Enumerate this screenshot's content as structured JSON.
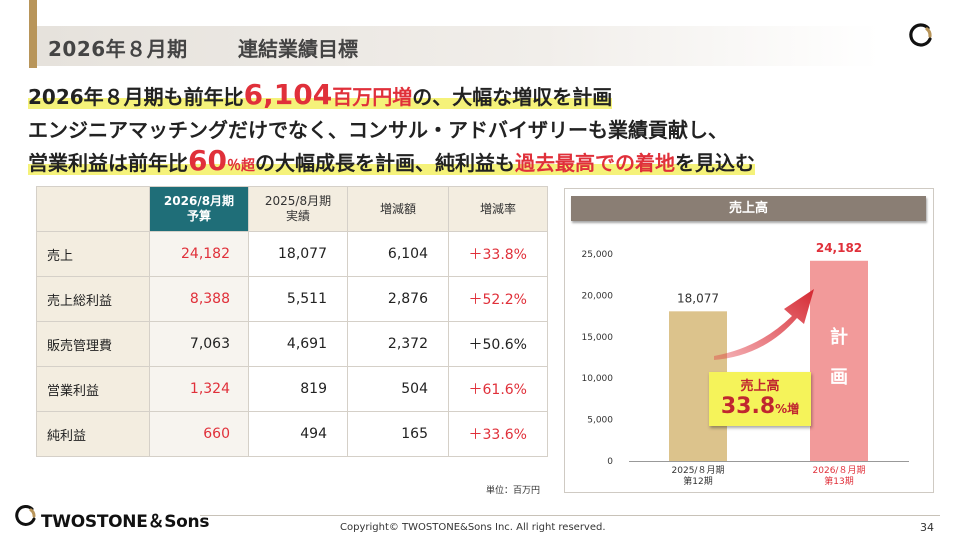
{
  "header": {
    "title": "2026年８月期",
    "subtitle": "連結業績目標"
  },
  "headline": {
    "line1_a": "2026年８月期も前年比",
    "line1_big": "6,104",
    "line1_unit": "百万円増",
    "line1_b": "の、大幅な増収を計画",
    "line2": "エンジニアマッチングだけでなく、コンサル・アドバイザリーも業績貢献し、",
    "line3_a": "営業利益は前年比",
    "line3_big": "60",
    "line3_pct": "％超",
    "line3_b": "の大幅成長を計画、純利益も",
    "line3_red": "過去最高での着地",
    "line3_c": "を見込む"
  },
  "table": {
    "headers": {
      "plan_l1": "2026/8月期",
      "plan_l2": "予算",
      "prev_l1": "2025/8月期",
      "prev_l2": "実績",
      "diff": "増減額",
      "rate": "増減率"
    },
    "rows": [
      {
        "label": "売上",
        "plan": "24,182",
        "prev": "18,077",
        "diff": "6,104",
        "rate": "＋33.8%"
      },
      {
        "label": "売上総利益",
        "plan": "8,388",
        "prev": "5,511",
        "diff": "2,876",
        "rate": "＋52.2%"
      },
      {
        "label": "販売管理費",
        "plan": "7,063",
        "prev": "4,691",
        "diff": "2,372",
        "rate": "＋50.6%"
      },
      {
        "label": "営業利益",
        "plan": "1,324",
        "prev": "819",
        "diff": "504",
        "rate": "＋61.6%"
      },
      {
        "label": "純利益",
        "plan": "660",
        "prev": "494",
        "diff": "165",
        "rate": "＋33.6%"
      }
    ],
    "unit_note": "単位：百万円"
  },
  "callout": {
    "label": "売上高",
    "value": "33.8",
    "suffix": "%増"
  },
  "plan_vertical": [
    "計",
    "画"
  ],
  "chart_data": {
    "type": "bar",
    "title": "売上高",
    "categories": [
      "2025/８月期 第12期",
      "2026/８月期 第13期"
    ],
    "category_lines": [
      [
        "2025/８月期",
        "第12期"
      ],
      [
        "2026/８月期",
        "第13期"
      ]
    ],
    "values": [
      18077,
      24182
    ],
    "value_labels": [
      "18,077",
      "24,182"
    ],
    "ylim": [
      0,
      25000
    ],
    "yticks": [
      0,
      5000,
      10000,
      15000,
      20000,
      25000
    ],
    "ytick_labels": [
      "0",
      "5,000",
      "10,000",
      "15,000",
      "20,000",
      "25,000"
    ],
    "bar_colors": [
      "#dcc38c",
      "#f29a9a"
    ],
    "label_colors": [
      "#333333",
      "#e0303a"
    ],
    "grid": false
  },
  "footer": {
    "brand": "TWOSTONE＆Sons",
    "copyright": "Copyright© TWOSTONE&Sons Inc. All right reserved.",
    "page": "34"
  },
  "colors": {
    "accent_gold": "#b8955a",
    "teal": "#1f6e78",
    "red": "#e0303a",
    "highlight": "#f5f27a"
  }
}
